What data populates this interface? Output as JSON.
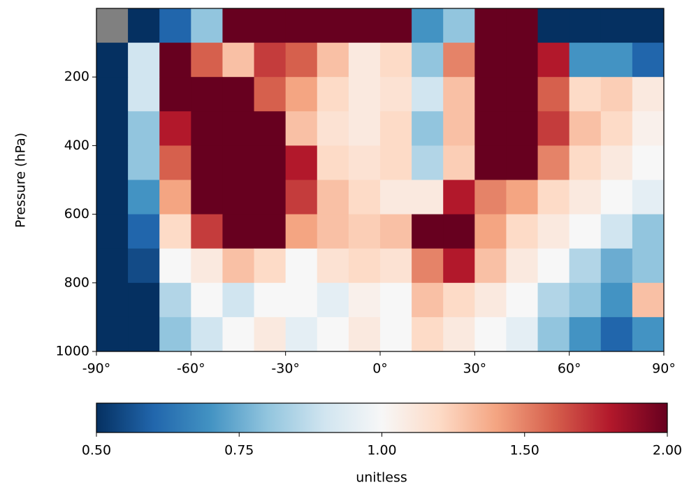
{
  "chart_data": {
    "type": "heatmap",
    "ylabel": "Pressure (hPa)",
    "x_edges": [
      -90,
      -80,
      -70,
      -60,
      -50,
      -40,
      -30,
      -20,
      -10,
      0,
      10,
      20,
      30,
      40,
      50,
      60,
      70,
      80,
      90
    ],
    "y_edges": [
      0,
      100,
      200,
      300,
      400,
      500,
      600,
      700,
      800,
      900,
      1000
    ],
    "values": [
      [
        null,
        0.5,
        0.6,
        0.8,
        2,
        2,
        2,
        2,
        2,
        2,
        0.7,
        0.8,
        2,
        2,
        0.5,
        0.5,
        0.5,
        0.5
      ],
      [
        0.5,
        0.9,
        2,
        1.6,
        1.3,
        1.7,
        1.6,
        1.3,
        1.1,
        1.2,
        0.8,
        1.5,
        2,
        2,
        1.8,
        0.7,
        0.7,
        0.6
      ],
      [
        0.5,
        0.9,
        2,
        2,
        2,
        1.6,
        1.4,
        1.2,
        1.1,
        1.15,
        0.9,
        1.3,
        2,
        2,
        1.6,
        1.2,
        1.25,
        1.1
      ],
      [
        0.5,
        0.8,
        1.8,
        2,
        2,
        2,
        1.3,
        1.15,
        1.1,
        1.2,
        0.8,
        1.3,
        2,
        2,
        1.7,
        1.3,
        1.2,
        1.05
      ],
      [
        0.5,
        0.8,
        1.6,
        2,
        2,
        2,
        1.8,
        1.2,
        1.15,
        1.2,
        0.85,
        1.25,
        2,
        2,
        1.5,
        1.2,
        1.1,
        1.0
      ],
      [
        0.5,
        0.7,
        1.4,
        2,
        2,
        2,
        1.7,
        1.3,
        1.2,
        1.1,
        1.1,
        1.8,
        1.5,
        1.4,
        1.2,
        1.1,
        1.0,
        0.95
      ],
      [
        0.5,
        0.6,
        1.2,
        1.7,
        2,
        2,
        1.4,
        1.3,
        1.25,
        1.3,
        2,
        2,
        1.4,
        1.2,
        1.1,
        1.0,
        0.9,
        0.8
      ],
      [
        0.5,
        0.55,
        1.0,
        1.1,
        1.3,
        1.2,
        1.0,
        1.15,
        1.2,
        1.15,
        1.5,
        1.8,
        1.3,
        1.1,
        1.0,
        0.85,
        0.75,
        0.8
      ],
      [
        0.5,
        0.5,
        0.85,
        1.0,
        0.9,
        1.0,
        1.0,
        0.95,
        1.05,
        1.0,
        1.3,
        1.2,
        1.1,
        1.0,
        0.85,
        0.8,
        0.7,
        1.3
      ],
      [
        0.5,
        0.5,
        0.8,
        0.9,
        1.0,
        1.1,
        0.95,
        1.0,
        1.1,
        1.0,
        1.2,
        1.1,
        1.0,
        0.95,
        0.8,
        0.7,
        0.6,
        0.7
      ]
    ],
    "xlim": [
      -90,
      90
    ],
    "xticks": [
      {
        "value": -90,
        "label": "-90°"
      },
      {
        "value": -60,
        "label": "-60°"
      },
      {
        "value": -30,
        "label": "-30°"
      },
      {
        "value": 0,
        "label": "0°"
      },
      {
        "value": 30,
        "label": "30°"
      },
      {
        "value": 60,
        "label": "60°"
      },
      {
        "value": 90,
        "label": "90°"
      }
    ],
    "ylim": [
      1000,
      0
    ],
    "yticks": [
      200,
      400,
      600,
      800,
      1000
    ],
    "colormap": [
      "#053061",
      "#2166ac",
      "#4393c3",
      "#92c5de",
      "#d1e5f0",
      "#f7f7f7",
      "#fddbc7",
      "#f4a582",
      "#d6604d",
      "#b2182b",
      "#67001f"
    ],
    "missing_color": "#808080",
    "colorbar": {
      "label": "unitless",
      "clim": [
        0.5,
        2
      ],
      "center": 1,
      "ticks": [
        {
          "value": 0.5,
          "label": "0.50"
        },
        {
          "value": 0.75,
          "label": "0.75"
        },
        {
          "value": 1,
          "label": "1.00"
        },
        {
          "value": 1.5,
          "label": "1.50"
        },
        {
          "value": 2,
          "label": "2.00"
        }
      ]
    }
  }
}
